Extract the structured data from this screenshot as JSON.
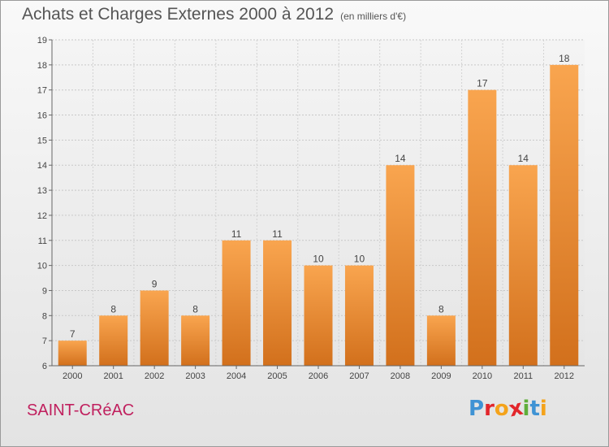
{
  "chart_data": {
    "type": "bar",
    "title": "Achats et Charges Externes 2000 à 2012",
    "subtitle": "(en milliers d'€)",
    "categories": [
      "2000",
      "2001",
      "2002",
      "2003",
      "2004",
      "2005",
      "2006",
      "2007",
      "2008",
      "2009",
      "2010",
      "2011",
      "2012"
    ],
    "values": [
      7,
      8,
      9,
      8,
      11,
      11,
      10,
      10,
      14,
      8,
      17,
      14,
      18
    ],
    "ylim": [
      6,
      19
    ],
    "yticks": [
      6,
      7,
      8,
      9,
      10,
      11,
      12,
      13,
      14,
      15,
      16,
      17,
      18,
      19
    ],
    "grid": true,
    "bar_color_top": "#f9a54f",
    "bar_color_bottom": "#d2701c"
  },
  "commune": "SAINT-CRéAC",
  "logo": {
    "letters": [
      {
        "ch": "P",
        "color": "#3f93d4"
      },
      {
        "ch": "r",
        "color": "#e2262b"
      },
      {
        "ch": "o",
        "color": "#f4a31b"
      },
      {
        "ch": "x",
        "color": "#e2262b"
      },
      {
        "ch": "i",
        "color": "#5fae3a"
      },
      {
        "ch": "t",
        "color": "#3f93d4"
      },
      {
        "ch": "i",
        "color": "#f4a31b"
      }
    ]
  }
}
